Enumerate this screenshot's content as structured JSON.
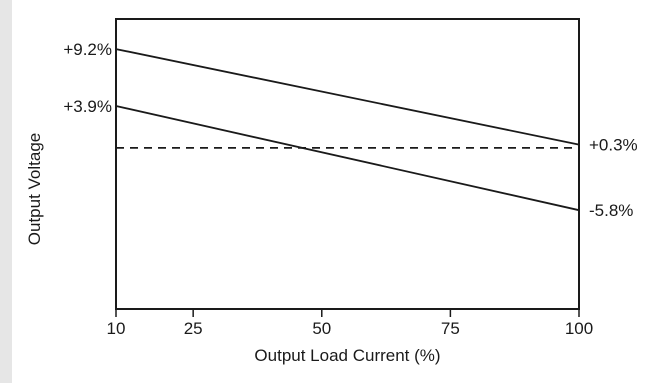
{
  "chart_data": {
    "type": "line",
    "title": "",
    "xlabel": "Output Load Current (%)",
    "ylabel": "Output Voltage",
    "xlim": [
      10,
      100
    ],
    "ylim": [
      -15,
      12
    ],
    "x_ticks": [
      10,
      25,
      50,
      75,
      100
    ],
    "x_tick_labels": [
      "10",
      "25",
      "50",
      "75",
      "100"
    ],
    "grid": false,
    "legend": "none",
    "series": [
      {
        "x": [
          10,
          100
        ],
        "values": [
          9.2,
          0.3
        ],
        "style": "solid",
        "color": "#1a1a1a",
        "start_label": "+9.2%",
        "end_label": "+0.3%"
      },
      {
        "x": [
          10,
          100
        ],
        "values": [
          3.9,
          -5.8
        ],
        "style": "solid",
        "color": "#1a1a1a",
        "start_label": "+3.9%",
        "end_label": "-5.8%"
      },
      {
        "x": [
          10,
          100
        ],
        "values": [
          0,
          0
        ],
        "style": "dashed",
        "color": "#1a1a1a"
      }
    ]
  }
}
